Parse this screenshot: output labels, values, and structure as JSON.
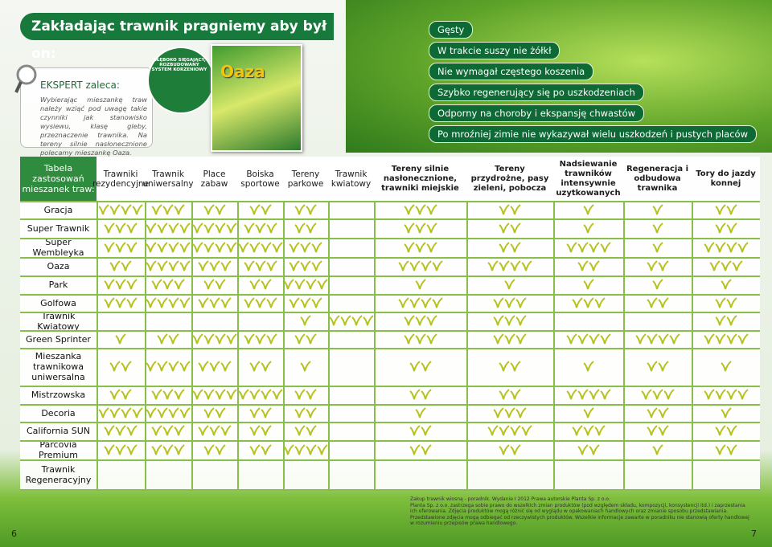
{
  "header": {
    "title": "Zakładając trawnik pragniemy aby był on:"
  },
  "features": [
    "Gęsty",
    "W trakcie suszy nie żółkł",
    "Nie wymagał częstego koszenia",
    "Szybko regenerujący się po uszkodzeniach",
    "Odporny na choroby i ekspansję chwastów",
    "Po mroźniej zimie nie wykazywał wielu uszkodzeń i pustych placów"
  ],
  "expert": {
    "heading": "EKSPERT zaleca:",
    "text": "Wybierając mieszankę traw należy wziąć pod uwagę takie czynniki jak stanowisko wysiewu, klasę gleby, przeznaczenie trawnika. Na tereny silnie nasłonecznione polecamy mieszankę Oaza."
  },
  "seal": "GŁĘBOKO SIĘGAJĄCY, ROZBUDOWANY SYSTEM KORZENIOWY",
  "package": "Oaza",
  "table": {
    "caption": "Tabela zastosowań mieszanek traw:",
    "columns": [
      "Trawniki rezydencyjne",
      "Trawnik uniwersalny",
      "Place zabaw",
      "Boiska sportowe",
      "Tereny parkowe",
      "Trawnik kwiatowy",
      "Tereny silnie nasłonecznione, trawniki miejskie",
      "Tereny przydrożne, pasy zieleni, pobocza",
      "Nadsiewanie trawników intensywnie uzytkowanych",
      "Regeneracja i odbudowa trawnika",
      "Tory do jazdy konnej"
    ],
    "rows": [
      {
        "name": "Gracja",
        "ratings": [
          4,
          3,
          2,
          2,
          2,
          0,
          3,
          2,
          1,
          1,
          2
        ]
      },
      {
        "name": "Super Trawnik",
        "ratings": [
          3,
          4,
          4,
          3,
          2,
          0,
          3,
          2,
          1,
          1,
          2
        ]
      },
      {
        "name": "Super Wembleyka",
        "ratings": [
          3,
          4,
          4,
          4,
          3,
          0,
          3,
          2,
          4,
          1,
          4
        ]
      },
      {
        "name": "Oaza",
        "ratings": [
          2,
          4,
          3,
          3,
          3,
          0,
          4,
          4,
          2,
          2,
          3
        ]
      },
      {
        "name": "Park",
        "ratings": [
          3,
          3,
          2,
          2,
          4,
          0,
          1,
          1,
          1,
          1,
          1
        ]
      },
      {
        "name": "Golfowa",
        "ratings": [
          3,
          4,
          3,
          3,
          3,
          0,
          4,
          3,
          3,
          2,
          2
        ]
      },
      {
        "name": "Trawnik Kwiatowy",
        "ratings": [
          0,
          0,
          0,
          0,
          1,
          4,
          3,
          3,
          0,
          0,
          2
        ]
      },
      {
        "name": "Green Sprinter",
        "ratings": [
          1,
          2,
          4,
          3,
          2,
          0,
          3,
          3,
          4,
          4,
          4
        ]
      },
      {
        "name": "Mieszanka trawnikowa uniwersalna",
        "ratings": [
          2,
          4,
          3,
          2,
          1,
          0,
          2,
          2,
          1,
          2,
          1
        ]
      },
      {
        "name": "Mistrzowska",
        "ratings": [
          2,
          3,
          4,
          4,
          2,
          0,
          2,
          2,
          4,
          3,
          4
        ]
      },
      {
        "name": "Decoria",
        "ratings": [
          4,
          4,
          2,
          2,
          2,
          0,
          1,
          3,
          1,
          2,
          1
        ]
      },
      {
        "name": "California SUN",
        "ratings": [
          3,
          3,
          3,
          2,
          2,
          0,
          2,
          4,
          3,
          2,
          2
        ]
      },
      {
        "name": "Parcovia Premium",
        "ratings": [
          3,
          3,
          2,
          2,
          4,
          0,
          2,
          2,
          2,
          1,
          2
        ]
      },
      {
        "name": "Trawnik Regeneracyjny",
        "ratings": [
          0,
          0,
          0,
          0,
          0,
          0,
          0,
          0,
          0,
          0,
          0
        ]
      }
    ]
  },
  "footer": {
    "lines": [
      "Zakup trawnik wiosną - poradnik. Wydanie I 2012 Prawa autorskie Planta Sp. z o.o.",
      "Planta Sp. z o.o. zastrzega sobie prawo do wszelkich zmian produktów (pod względem składu, kompozycji, konsystencji itd.) i zaprzestania ich oferowania. Zdjęcia produktów mogą różnić się od wyglądu w opakowaniach handlowych oraz zmianie sposobu przedstawiania. Przedstawione zdjęcia mogą odbiegać od rzeczywistych produktów. Wszelkie informacje zawarte w poradniku nie stanowią oferty handlowej w rozumieniu przepisów prawa handlowego."
    ]
  },
  "page_numbers": [
    "6",
    "7"
  ]
}
